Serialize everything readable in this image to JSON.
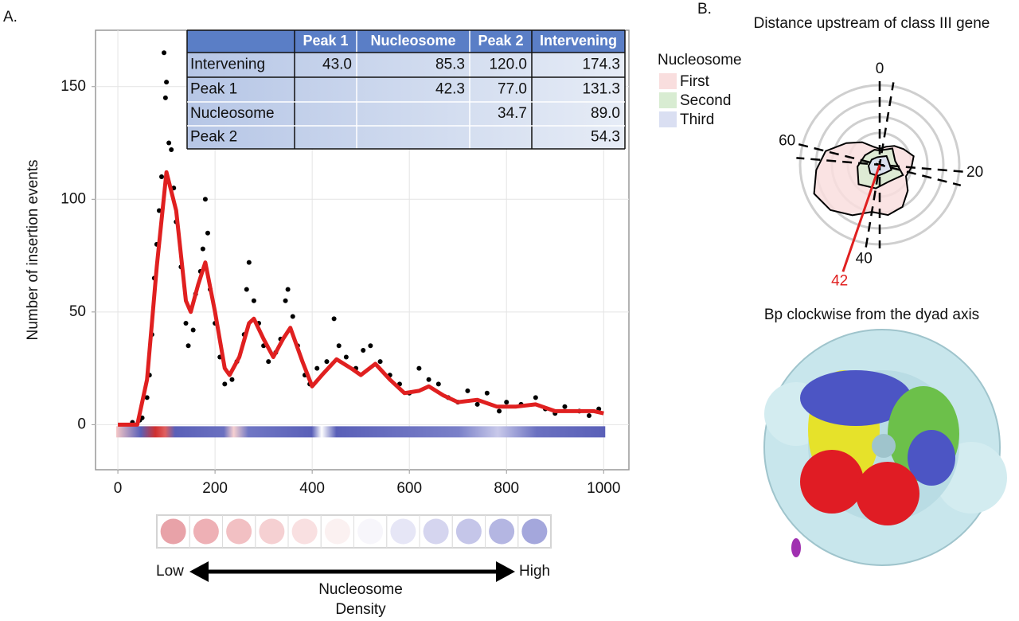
{
  "chart_data": [
    {
      "type": "scatter-line",
      "panel_label": "A.",
      "ylabel": "Number of insertion events",
      "xlim": [
        -46,
        1052
      ],
      "ylim": [
        -20,
        175
      ],
      "xticks": [
        0,
        200,
        400,
        600,
        800,
        1000
      ],
      "yticks": [
        0,
        50,
        100,
        150
      ],
      "grid": true,
      "points": {
        "color": "#000000",
        "x": [
          30,
          45,
          50,
          60,
          65,
          70,
          75,
          80,
          85,
          90,
          95,
          98,
          100,
          105,
          110,
          115,
          120,
          130,
          140,
          145,
          155,
          160,
          170,
          175,
          180,
          185,
          190,
          200,
          210,
          220,
          235,
          245,
          260,
          265,
          270,
          280,
          290,
          300,
          310,
          325,
          335,
          345,
          350,
          360,
          370,
          385,
          395,
          410,
          430,
          445,
          455,
          470,
          490,
          505,
          520,
          540,
          560,
          580,
          600,
          620,
          640,
          660,
          680,
          700,
          720,
          740,
          760,
          785,
          800,
          830,
          860,
          880,
          900,
          920,
          950,
          970,
          990
        ],
        "y": [
          1,
          2,
          3,
          12,
          22,
          40,
          65,
          80,
          95,
          110,
          165,
          145,
          152,
          125,
          122,
          105,
          90,
          70,
          45,
          35,
          42,
          58,
          68,
          78,
          100,
          85,
          60,
          45,
          30,
          18,
          20,
          28,
          40,
          60,
          72,
          55,
          45,
          35,
          28,
          32,
          38,
          55,
          60,
          48,
          35,
          22,
          18,
          25,
          28,
          47,
          35,
          30,
          25,
          33,
          35,
          28,
          22,
          18,
          14,
          25,
          20,
          18,
          12,
          10,
          15,
          9,
          14,
          6,
          10,
          9,
          12,
          7,
          5,
          8,
          6,
          4,
          7
        ]
      },
      "fit": {
        "color": "#e02020",
        "x": [
          0,
          20,
          40,
          60,
          80,
          100,
          120,
          140,
          150,
          165,
          180,
          200,
          220,
          230,
          250,
          270,
          280,
          300,
          320,
          340,
          355,
          380,
          400,
          420,
          450,
          480,
          500,
          530,
          560,
          590,
          620,
          640,
          670,
          700,
          740,
          780,
          820,
          860,
          900,
          940,
          980,
          1000
        ],
        "y": [
          0,
          0,
          0,
          20,
          70,
          112,
          95,
          55,
          50,
          62,
          72,
          50,
          25,
          22,
          30,
          45,
          47,
          38,
          30,
          38,
          43,
          28,
          17,
          22,
          29,
          25,
          22,
          27,
          20,
          14,
          15,
          17,
          13,
          10,
          11,
          8,
          8,
          9,
          6,
          6,
          6,
          5
        ]
      },
      "table": {
        "columns": [
          "Peak 1",
          "Nucleosome",
          "Peak 2",
          "Intervening"
        ],
        "rows": [
          {
            "name": "Intervening",
            "values": [
              "43.0",
              "85.3",
              "120.0",
              "174.3"
            ]
          },
          {
            "name": "Peak 1",
            "values": [
              null,
              "42.3",
              "77.0",
              "131.3"
            ]
          },
          {
            "name": "Nucleosome",
            "values": [
              null,
              null,
              "34.7",
              "89.0"
            ]
          },
          {
            "name": "Peak 2",
            "values": [
              null,
              null,
              null,
              "54.3"
            ]
          }
        ]
      },
      "density_legend": {
        "low": "Low",
        "high": "High",
        "label": [
          "Nucleosome",
          "Density"
        ],
        "colors": [
          "#e8a2a8",
          "#eeb0b5",
          "#f2c0c3",
          "#f5d0d2",
          "#f9e0e1",
          "#fbf1f1",
          "#f7f6fb",
          "#e6e6f6",
          "#d5d5ef",
          "#c5c6e9",
          "#b4b6e2",
          "#a4a7dc"
        ]
      }
    },
    {
      "type": "polar",
      "panel_label": "B.",
      "title": "Distance upstream of class III gene",
      "xlabel": "Bp clockwise from the dyad axis",
      "legend_title": "Nucleosome",
      "thetalim": [
        0,
        76
      ],
      "thetaticks": [
        0,
        20,
        40,
        60
      ],
      "rlim": [
        0,
        5
      ],
      "highlight": 42,
      "highlight_color": "#e02020",
      "series": [
        {
          "name": "First",
          "color": "#f9dede",
          "theta": [
            0,
            4,
            8,
            12,
            16,
            20,
            24,
            28,
            32,
            36,
            40,
            44,
            48,
            52,
            56,
            60,
            64,
            68,
            72
          ],
          "r": [
            1.0,
            1.2,
            1.5,
            1.8,
            2.2,
            2.0,
            1.8,
            2.4,
            3.0,
            3.2,
            3.0,
            3.6,
            4.2,
            4.5,
            4.0,
            3.5,
            2.5,
            1.8,
            1.2
          ]
        },
        {
          "name": "Second",
          "color": "#d8ecd2",
          "theta": [
            0,
            8,
            16,
            24,
            32,
            40,
            48,
            56,
            64,
            72
          ],
          "r": [
            0.9,
            1.3,
            1.0,
            1.6,
            1.2,
            1.5,
            1.8,
            1.4,
            1.1,
            1.0
          ]
        },
        {
          "name": "Third",
          "color": "#dadff2",
          "theta": [
            0,
            8,
            16,
            24,
            32,
            40,
            48,
            56,
            64,
            72
          ],
          "r": [
            0.5,
            0.7,
            0.6,
            0.8,
            0.6,
            0.7,
            0.8,
            0.7,
            0.6,
            0.5
          ]
        }
      ]
    }
  ]
}
